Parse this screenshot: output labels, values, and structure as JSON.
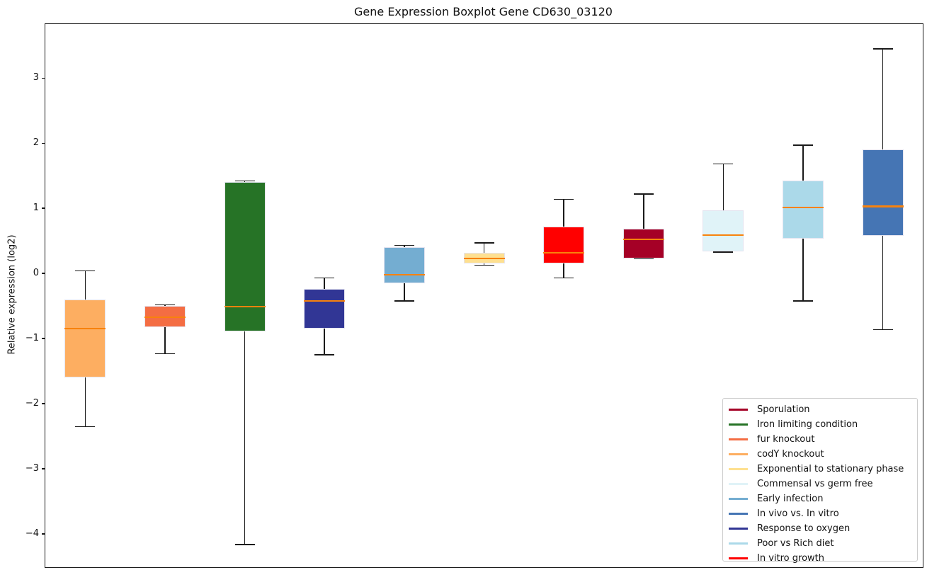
{
  "title": "Gene Expression Boxplot Gene CD630_03120",
  "y_axis": {
    "label": "Relative expression (log2)",
    "ticks": [
      3,
      2,
      1,
      0,
      -1,
      -2,
      -3,
      -4
    ]
  },
  "chart_data": {
    "type": "boxplot",
    "title": "Gene Expression Boxplot Gene CD630_03120",
    "xlabel": "",
    "ylabel": "Relative expression (log2)",
    "ylim": [
      -4.5,
      3.84
    ],
    "grid": false,
    "legend_position": "lower right",
    "whisker_color": "#1a1a1a",
    "median_color": "#f8820d",
    "boxes": [
      {
        "condition": "codY knockout",
        "color": "#FDAE61",
        "whisker_low": -2.34,
        "q1": -1.59,
        "median": -0.84,
        "q3": -0.39,
        "whisker_high": 0.05
      },
      {
        "condition": "fur knockout",
        "color": "#F46D43",
        "whisker_low": -1.22,
        "q1": -0.81,
        "median": -0.66,
        "q3": -0.49,
        "whisker_high": -0.47
      },
      {
        "condition": "Iron limiting condition",
        "color": "#267326",
        "whisker_low": -4.15,
        "q1": -0.88,
        "median": -0.5,
        "q3": 1.41,
        "whisker_high": 1.43
      },
      {
        "condition": "Response to oxygen",
        "color": "#313695",
        "whisker_low": -1.24,
        "q1": -0.84,
        "median": -0.41,
        "q3": -0.23,
        "whisker_high": -0.06
      },
      {
        "condition": "Early infection",
        "color": "#74ADD1",
        "whisker_low": -0.41,
        "q1": -0.14,
        "median": -0.01,
        "q3": 0.42,
        "whisker_high": 0.44
      },
      {
        "condition": "Exponential to stationary phase",
        "color": "#FEE090",
        "whisker_low": 0.14,
        "q1": 0.16,
        "median": 0.24,
        "q3": 0.33,
        "whisker_high": 0.48
      },
      {
        "condition": "In vitro growth",
        "color": "#FF0000",
        "whisker_low": -0.06,
        "q1": 0.16,
        "median": 0.33,
        "q3": 0.73,
        "whisker_high": 1.15
      },
      {
        "condition": "Sporulation",
        "color": "#A50026",
        "whisker_low": 0.24,
        "q1": 0.24,
        "median": 0.53,
        "q3": 0.7,
        "whisker_high": 1.23
      },
      {
        "condition": "Commensal vs germ free",
        "color": "#E0F3F8",
        "whisker_low": 0.34,
        "q1": 0.35,
        "median": 0.6,
        "q3": 0.98,
        "whisker_high": 1.69
      },
      {
        "condition": "Poor vs Rich diet",
        "color": "#ABD9E9",
        "whisker_low": -0.41,
        "q1": 0.54,
        "median": 1.02,
        "q3": 1.44,
        "whisker_high": 1.98
      },
      {
        "condition": "In vivo vs. In vitro",
        "color": "#4575B4",
        "whisker_low": -0.85,
        "q1": 0.59,
        "median": 1.04,
        "q3": 1.92,
        "whisker_high": 3.46
      }
    ]
  },
  "legend": {
    "items": [
      {
        "label": "Sporulation",
        "color": "#A50026"
      },
      {
        "label": "Iron limiting condition",
        "color": "#267326"
      },
      {
        "label": "fur knockout",
        "color": "#F46D43"
      },
      {
        "label": "codY knockout",
        "color": "#FDAE61"
      },
      {
        "label": "Exponential to stationary phase",
        "color": "#FEE090"
      },
      {
        "label": "Commensal vs germ free",
        "color": "#E0F3F8"
      },
      {
        "label": "Early infection",
        "color": "#74ADD1"
      },
      {
        "label": "In vivo vs. In vitro",
        "color": "#4575B4"
      },
      {
        "label": "Response to oxygen",
        "color": "#313695"
      },
      {
        "label": "Poor vs Rich diet",
        "color": "#ABD9E9"
      },
      {
        "label": "In vitro growth",
        "color": "#FF0000"
      }
    ]
  }
}
